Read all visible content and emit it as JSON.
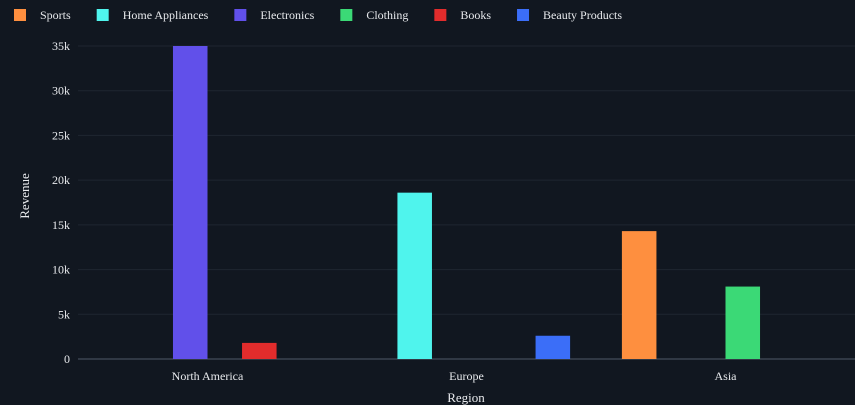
{
  "chart_data": {
    "type": "bar",
    "xlabel": "Region",
    "ylabel": "Revenue",
    "ylim": [
      0,
      35000
    ],
    "yticks": [
      {
        "value": 0,
        "label": "0"
      },
      {
        "value": 5000,
        "label": "5k"
      },
      {
        "value": 10000,
        "label": "10k"
      },
      {
        "value": 15000,
        "label": "15k"
      },
      {
        "value": 20000,
        "label": "20k"
      },
      {
        "value": 25000,
        "label": "25k"
      },
      {
        "value": 30000,
        "label": "30k"
      },
      {
        "value": 35000,
        "label": "35k"
      }
    ],
    "categories": [
      "North America",
      "Europe",
      "Asia"
    ],
    "grid": true,
    "legend_position": "top-left",
    "series": [
      {
        "name": "Sports",
        "color": "#fe8f3f",
        "values": [
          null,
          null,
          14300
        ]
      },
      {
        "name": "Home Appliances",
        "color": "#4ff4ed",
        "values": [
          null,
          18600,
          null
        ]
      },
      {
        "name": "Electronics",
        "color": "#6150ea",
        "values": [
          35000,
          null,
          null
        ]
      },
      {
        "name": "Clothing",
        "color": "#3bd976",
        "values": [
          null,
          null,
          8100
        ]
      },
      {
        "name": "Books",
        "color": "#e22c2c",
        "values": [
          1800,
          null,
          null
        ]
      },
      {
        "name": "Beauty Products",
        "color": "#3b6ef8",
        "values": [
          null,
          2600,
          null
        ]
      }
    ]
  }
}
